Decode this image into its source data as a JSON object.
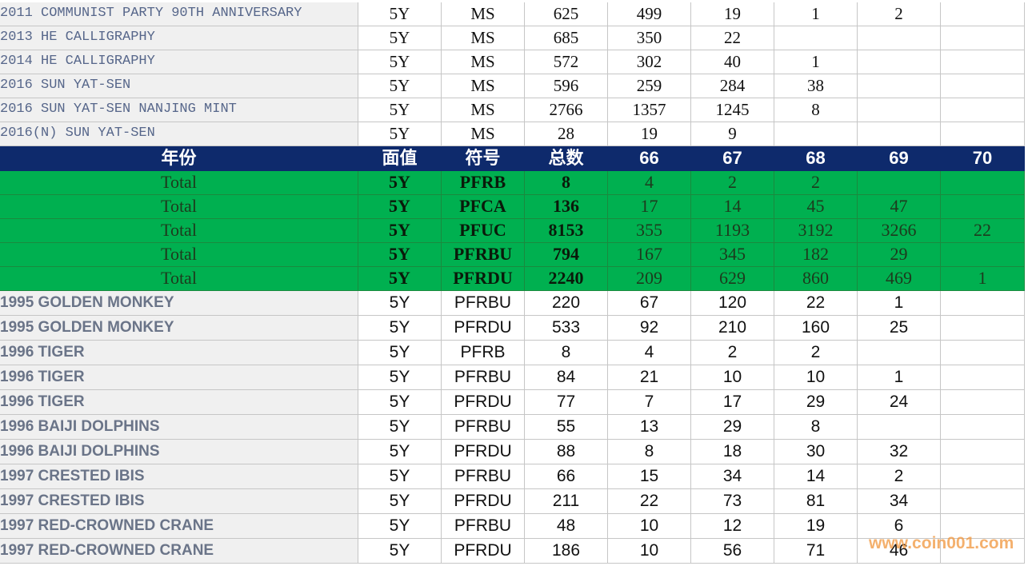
{
  "top_rows": [
    [
      "2011 COMMUNIST PARTY 90TH ANNIVERSARY",
      "5Y",
      "MS",
      625,
      499,
      19,
      1,
      2,
      null
    ],
    [
      "2013 HE CALLIGRAPHY",
      "5Y",
      "MS",
      685,
      350,
      22,
      null,
      null,
      null
    ],
    [
      "2014 HE CALLIGRAPHY",
      "5Y",
      "MS",
      572,
      302,
      40,
      1,
      null,
      null
    ],
    [
      "2016 SUN YAT-SEN",
      "5Y",
      "MS",
      596,
      259,
      284,
      38,
      null,
      null
    ],
    [
      "2016 SUN YAT-SEN NANJING MINT",
      "5Y",
      "MS",
      2766,
      1357,
      1245,
      8,
      null,
      null
    ],
    [
      "2016(N) SUN YAT-SEN",
      "5Y",
      "MS",
      28,
      19,
      9,
      null,
      null,
      null
    ]
  ],
  "header": [
    "年份",
    "面值",
    "符号",
    "总数",
    "66",
    "67",
    "68",
    "69",
    "70"
  ],
  "total_rows": [
    [
      "Total",
      "5Y",
      "PFRB",
      8,
      4,
      2,
      2,
      null,
      null
    ],
    [
      "Total",
      "5Y",
      "PFCA",
      136,
      17,
      14,
      45,
      47,
      null
    ],
    [
      "Total",
      "5Y",
      "PFUC",
      8153,
      355,
      1193,
      3192,
      3266,
      22
    ],
    [
      "Total",
      "5Y",
      "PFRBU",
      794,
      167,
      345,
      182,
      29,
      null
    ],
    [
      "Total",
      "5Y",
      "PFRDU",
      2240,
      209,
      629,
      860,
      469,
      1
    ]
  ],
  "bottom_rows": [
    [
      "1995 GOLDEN MONKEY",
      "5Y",
      "PFRBU",
      220,
      67,
      120,
      22,
      1,
      null
    ],
    [
      "1995 GOLDEN MONKEY",
      "5Y",
      "PFRDU",
      533,
      92,
      210,
      160,
      25,
      null
    ],
    [
      "1996 TIGER",
      "5Y",
      "PFRB",
      8,
      4,
      2,
      2,
      null,
      null
    ],
    [
      "1996 TIGER",
      "5Y",
      "PFRBU",
      84,
      21,
      10,
      10,
      1,
      null
    ],
    [
      "1996 TIGER",
      "5Y",
      "PFRDU",
      77,
      7,
      17,
      29,
      24,
      null
    ],
    [
      "1996 BAIJI DOLPHINS",
      "5Y",
      "PFRBU",
      55,
      13,
      29,
      8,
      null,
      null
    ],
    [
      "1996 BAIJI DOLPHINS",
      "5Y",
      "PFRDU",
      88,
      8,
      18,
      30,
      32,
      null
    ],
    [
      "1997 CRESTED IBIS",
      "5Y",
      "PFRBU",
      66,
      15,
      34,
      14,
      2,
      null
    ],
    [
      "1997 CRESTED IBIS",
      "5Y",
      "PFRDU",
      211,
      22,
      73,
      81,
      34,
      null
    ],
    [
      "1997 RED-CROWNED CRANE",
      "5Y",
      "PFRBU",
      48,
      10,
      12,
      19,
      6,
      null
    ],
    [
      "1997 RED-CROWNED CRANE",
      "5Y",
      "PFRDU",
      186,
      10,
      56,
      71,
      46,
      null
    ]
  ],
  "watermark": "www.coin001.com"
}
